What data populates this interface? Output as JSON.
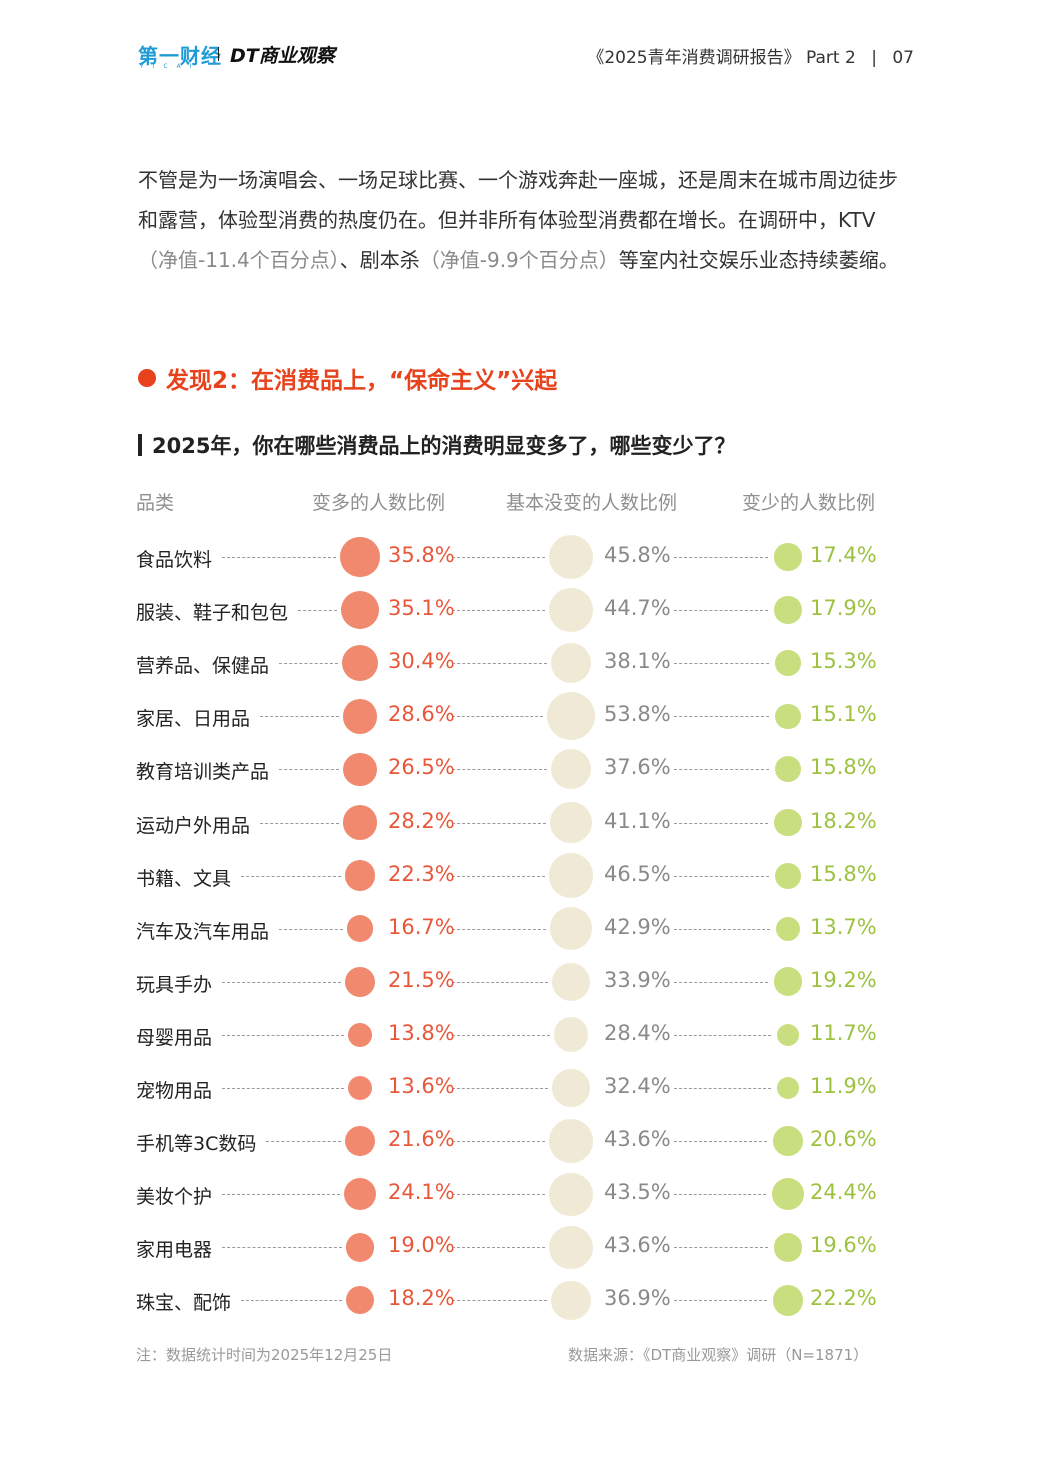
{
  "header": {
    "logo1": "第一财经",
    "logo1_sub": "YICAI",
    "logo2": "DT商业观察",
    "report_title": "《2025青年消费调研报告》",
    "part": "Part 2",
    "page": "07"
  },
  "intro": {
    "p1": "不管是为一场演唱会、一场足球比赛、一个游戏奔赴一座城，还是周末在城市周边徒步和露营，体验型消费的热度仍在。但并非所有体验型消费都在增长。在调研中，KTV",
    "p2": "（净值-11.4个百分点）",
    "p3": "、剧本杀",
    "p4": "（净值-9.9个百分点）",
    "p5": "等室内社交娱乐业态持续萎缩。"
  },
  "finding": {
    "text": "发现2：在消费品上，“保命主义”兴起"
  },
  "question": {
    "text": "2025年，你在哪些消费品上的消费明显变多了，哪些变少了？"
  },
  "colors": {
    "more": "#f0896e",
    "same": "#efe9d5",
    "less": "#c9de7e"
  },
  "chart_data": {
    "type": "bubble-table",
    "title": "2025年，你在哪些消费品上的消费明显变多了，哪些变少了？",
    "columns": [
      "品类",
      "变多的人数比例",
      "基本没变的人数比例",
      "变少的人数比例"
    ],
    "unit": "%",
    "rows": [
      {
        "category": "食品饮料",
        "more": 35.8,
        "same": 45.8,
        "less": 17.4
      },
      {
        "category": "服装、鞋子和包包",
        "more": 35.1,
        "same": 44.7,
        "less": 17.9
      },
      {
        "category": "营养品、保健品",
        "more": 30.4,
        "same": 38.1,
        "less": 15.3
      },
      {
        "category": "家居、日用品",
        "more": 28.6,
        "same": 53.8,
        "less": 15.1
      },
      {
        "category": "教育培训类产品",
        "more": 26.5,
        "same": 37.6,
        "less": 15.8
      },
      {
        "category": "运动户外用品",
        "more": 28.2,
        "same": 41.1,
        "less": 18.2
      },
      {
        "category": "书籍、文具",
        "more": 22.3,
        "same": 46.5,
        "less": 15.8
      },
      {
        "category": "汽车及汽车用品",
        "more": 16.7,
        "same": 42.9,
        "less": 13.7
      },
      {
        "category": "玩具手办",
        "more": 21.5,
        "same": 33.9,
        "less": 19.2
      },
      {
        "category": "母婴用品",
        "more": 13.8,
        "same": 28.4,
        "less": 11.7
      },
      {
        "category": "宠物用品",
        "more": 13.6,
        "same": 32.4,
        "less": 11.9
      },
      {
        "category": "手机等3C数码",
        "more": 21.6,
        "same": 43.6,
        "less": 20.6
      },
      {
        "category": "美妆个护",
        "more": 24.1,
        "same": 43.5,
        "less": 24.4
      },
      {
        "category": "家用电器",
        "more": 19.0,
        "same": 43.6,
        "less": 19.6
      },
      {
        "category": "珠宝、配饰",
        "more": 18.2,
        "same": 36.9,
        "less": 22.2
      }
    ]
  },
  "notes": {
    "left": "注：数据统计时间为2025年12月25日",
    "right": "数据来源：《DT商业观察》调研（N=1871）"
  }
}
